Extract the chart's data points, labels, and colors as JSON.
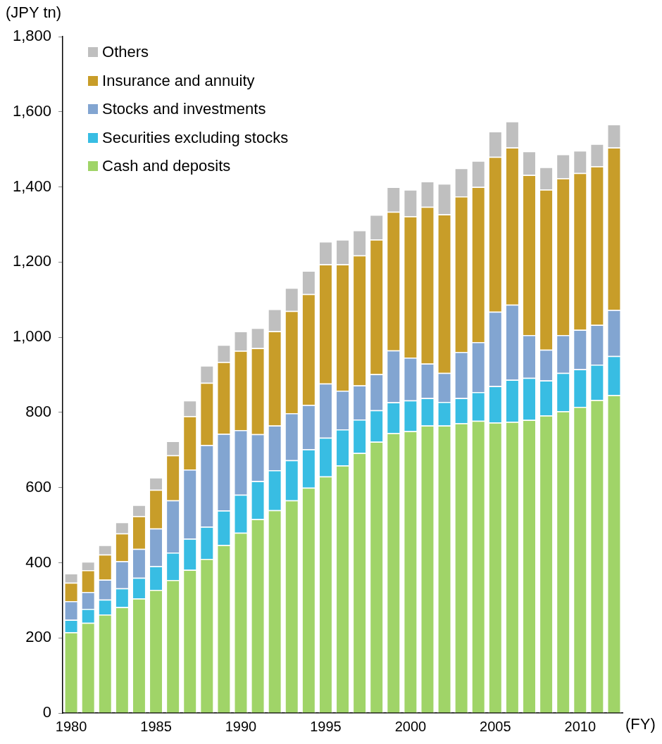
{
  "chart_data": {
    "type": "bar",
    "stacked": true,
    "xlabel": "(FY)",
    "ylabel": "(JPY tn)",
    "legend": "top left",
    "grid": false,
    "categories": [
      "1980",
      null,
      null,
      null,
      null,
      "1985",
      null,
      null,
      null,
      null,
      "1990",
      null,
      null,
      null,
      null,
      "1995",
      null,
      null,
      null,
      null,
      "2000",
      null,
      null,
      null,
      null,
      "2005",
      null,
      null,
      null,
      null,
      "2010",
      null,
      null
    ],
    "ylim": [
      0,
      1800
    ],
    "yticks": [
      0,
      200,
      400,
      600,
      800,
      {
        "value": 1000,
        "label": "1,000"
      },
      {
        "value": 1200,
        "label": "1,200"
      },
      {
        "value": 1400,
        "label": "1,400"
      },
      {
        "value": 1600,
        "label": "1,600"
      },
      {
        "value": 1800,
        "label": "1,800"
      }
    ],
    "series": [
      {
        "name": "Cash and deposits",
        "color": "#a0d468",
        "values": [
          215,
          240,
          262,
          282,
          305,
          328,
          354,
          381,
          410,
          447,
          480,
          516,
          540,
          566,
          600,
          630,
          659,
          692,
          722,
          745,
          750,
          765,
          765,
          771,
          778,
          773,
          775,
          780,
          792,
          803,
          815,
          833,
          846
        ]
      },
      {
        "name": "Securities excluding stocks",
        "color": "#38bde3",
        "values": [
          33,
          37,
          40,
          50,
          55,
          63,
          73,
          83,
          86,
          92,
          101,
          101,
          106,
          107,
          102,
          103,
          96,
          89,
          84,
          82,
          82,
          73,
          63,
          67,
          76,
          97,
          112,
          112,
          93,
          102,
          100,
          94,
          104
        ]
      },
      {
        "name": "Stocks and investments",
        "color": "#82a5d1",
        "values": [
          50,
          45,
          53,
          72,
          77,
          100,
          139,
          184,
          217,
          204,
          172,
          125,
          119,
          125,
          118,
          144,
          103,
          91,
          96,
          138,
          114,
          92,
          77,
          123,
          133,
          198,
          200,
          114,
          82,
          101,
          105,
          106,
          123
        ]
      },
      {
        "name": "Insurance and annuity",
        "color": "#c89d29",
        "values": [
          49,
          58,
          67,
          74,
          87,
          103,
          120,
          142,
          166,
          191,
          211,
          229,
          251,
          272,
          295,
          317,
          336,
          346,
          358,
          369,
          376,
          417,
          422,
          414,
          413,
          412,
          418,
          426,
          426,
          417,
          417,
          422,
          432
        ]
      },
      {
        "name": "Others",
        "color": "#bfbfbf",
        "values": [
          25,
          23,
          25,
          30,
          30,
          33,
          38,
          42,
          46,
          46,
          52,
          54,
          59,
          62,
          62,
          61,
          66,
          67,
          66,
          66,
          71,
          68,
          82,
          75,
          70,
          68,
          70,
          63,
          60,
          64,
          60,
          60,
          62
        ]
      }
    ]
  }
}
